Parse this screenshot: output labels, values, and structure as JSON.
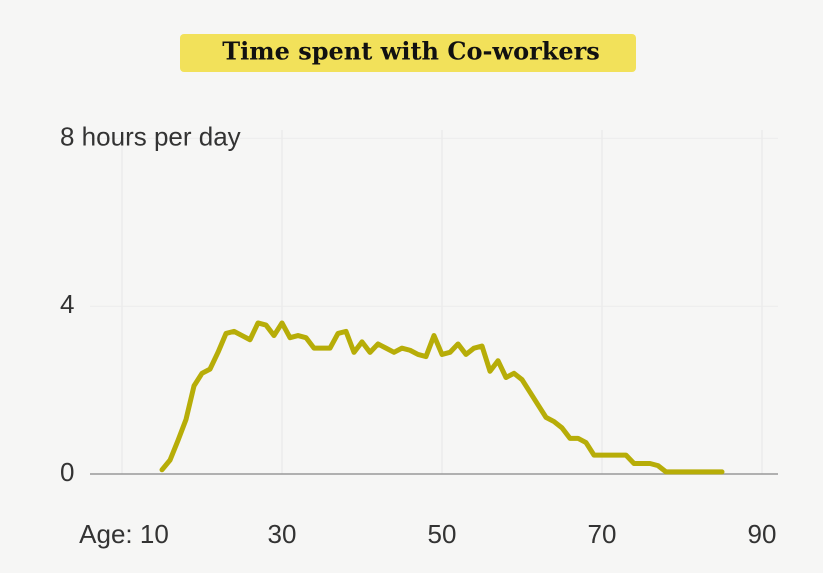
{
  "chart_data": {
    "type": "line",
    "title": "Time spent with Co-workers",
    "x": [
      15,
      16,
      17,
      18,
      19,
      20,
      21,
      22,
      23,
      24,
      25,
      26,
      27,
      28,
      29,
      30,
      31,
      32,
      33,
      34,
      35,
      36,
      37,
      38,
      39,
      40,
      41,
      42,
      43,
      44,
      45,
      46,
      47,
      48,
      49,
      50,
      51,
      52,
      53,
      54,
      55,
      56,
      57,
      58,
      59,
      60,
      61,
      62,
      63,
      64,
      65,
      66,
      67,
      68,
      69,
      70,
      71,
      72,
      73,
      74,
      75,
      76,
      77,
      78,
      79,
      80,
      81,
      82,
      83,
      84,
      85
    ],
    "values": [
      0.1,
      0.33,
      0.8,
      1.3,
      2.1,
      2.4,
      2.5,
      2.9,
      3.35,
      3.4,
      3.3,
      3.2,
      3.6,
      3.55,
      3.3,
      3.6,
      3.25,
      3.3,
      3.25,
      3.0,
      3.0,
      3.0,
      3.35,
      3.4,
      2.9,
      3.15,
      2.9,
      3.1,
      3.0,
      2.9,
      3.0,
      2.95,
      2.85,
      2.8,
      3.3,
      2.85,
      2.9,
      3.1,
      2.85,
      3.0,
      3.05,
      2.45,
      2.7,
      2.3,
      2.4,
      2.25,
      1.95,
      1.65,
      1.35,
      1.25,
      1.1,
      0.85,
      0.85,
      0.75,
      0.45,
      0.45,
      0.45,
      0.45,
      0.45,
      0.25,
      0.25,
      0.25,
      0.2,
      0.05,
      0.05,
      0.05,
      0.05,
      0.05,
      0.05,
      0.05,
      0.05
    ],
    "color": "#b7ad08",
    "xlim": [
      6,
      92
    ],
    "ylim": [
      0,
      8.2
    ],
    "xticks": [
      {
        "value": 10,
        "label": "Age: 10"
      },
      30,
      50,
      70,
      90
    ],
    "yticks": [
      0,
      4,
      {
        "value": 8,
        "label": "8 hours per day"
      }
    ],
    "grid": true
  }
}
